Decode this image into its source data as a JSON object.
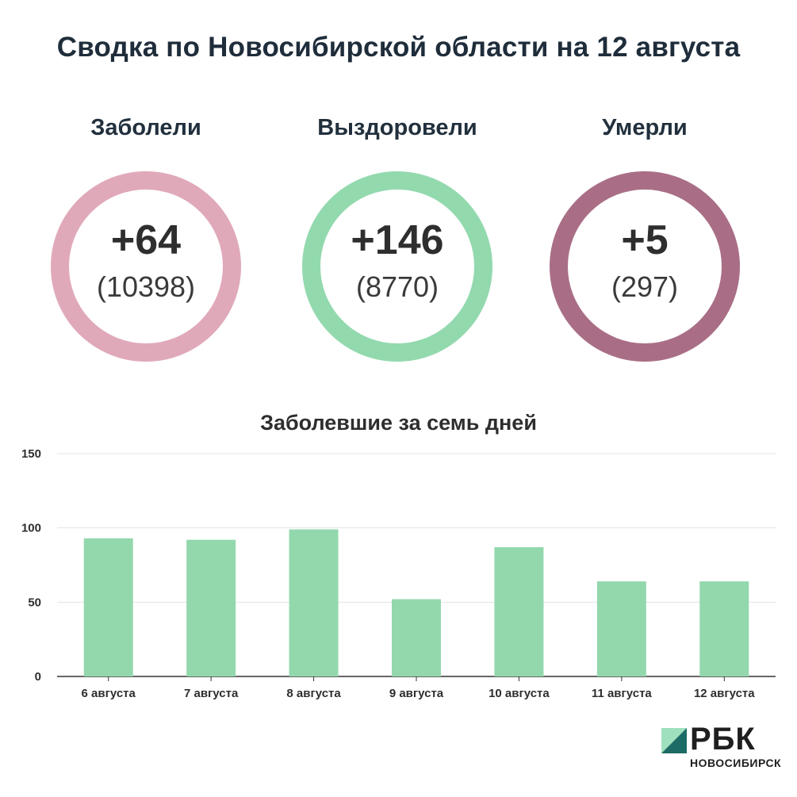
{
  "title": "Сводка по Новосибирской области на 12 августа",
  "stats": [
    {
      "label": "Заболели",
      "delta": "+64",
      "total": "(10398)",
      "color": "#e0a9b9"
    },
    {
      "label": "Выздоровели",
      "delta": "+146",
      "total": "(8770)",
      "color": "#93d9ae"
    },
    {
      "label": "Умерли",
      "delta": "+5",
      "total": "(297)",
      "color": "#a96e86"
    }
  ],
  "chart_data": {
    "type": "bar",
    "title": "Заболевшие за семь дней",
    "categories": [
      "6 августа",
      "7 августа",
      "8 августа",
      "9 августа",
      "10 августа",
      "11 августа",
      "12 августа"
    ],
    "values": [
      93,
      92,
      99,
      52,
      87,
      64,
      64
    ],
    "ylim": [
      0,
      150
    ],
    "yticks": [
      "0",
      "50",
      "100",
      "150"
    ],
    "grid": true,
    "bar_color": "#93d8ad",
    "xlabel": "",
    "ylabel": ""
  },
  "logo": {
    "name": "РБК",
    "region": "НОВОСИБИРСК",
    "colors": [
      "#9fe0bf",
      "#1d6b66"
    ]
  }
}
